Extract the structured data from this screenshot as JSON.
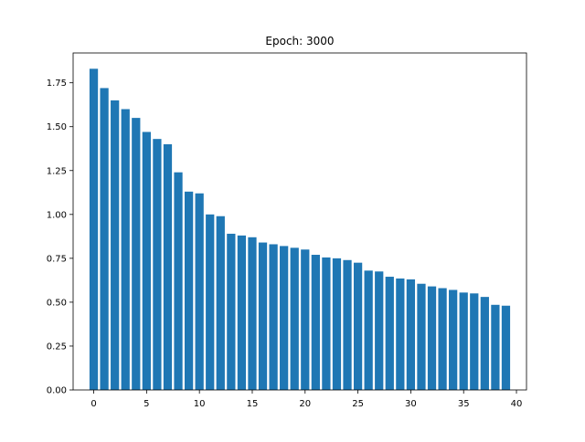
{
  "chart_data": {
    "type": "bar",
    "title": "Epoch: 3000",
    "xlabel": "",
    "ylabel": "",
    "x": [
      0,
      1,
      2,
      3,
      4,
      5,
      6,
      7,
      8,
      9,
      10,
      11,
      12,
      13,
      14,
      15,
      16,
      17,
      18,
      19,
      20,
      21,
      22,
      23,
      24,
      25,
      26,
      27,
      28,
      29,
      30,
      31,
      32,
      33,
      34,
      35,
      36,
      37,
      38,
      39
    ],
    "values": [
      1.83,
      1.72,
      1.65,
      1.6,
      1.55,
      1.47,
      1.43,
      1.4,
      1.24,
      1.13,
      1.12,
      1.0,
      0.99,
      0.89,
      0.88,
      0.87,
      0.84,
      0.83,
      0.82,
      0.81,
      0.8,
      0.77,
      0.755,
      0.75,
      0.74,
      0.725,
      0.68,
      0.675,
      0.645,
      0.635,
      0.63,
      0.605,
      0.59,
      0.58,
      0.57,
      0.555,
      0.55,
      0.53,
      0.485,
      0.48
    ],
    "xlim": [
      -1.95,
      40.95
    ],
    "ylim": [
      0,
      1.92
    ],
    "xticks": [
      0,
      5,
      10,
      15,
      20,
      25,
      30,
      35,
      40
    ],
    "yticks": [
      0.0,
      0.25,
      0.5,
      0.75,
      1.0,
      1.25,
      1.5,
      1.75
    ],
    "xtick_labels": [
      "0",
      "5",
      "10",
      "15",
      "20",
      "25",
      "30",
      "35",
      "40"
    ],
    "ytick_labels": [
      "0.00",
      "0.25",
      "0.50",
      "0.75",
      "1.00",
      "1.25",
      "1.50",
      "1.75"
    ],
    "bar_color": "#1f77b4",
    "grid": false,
    "legend": "none"
  }
}
